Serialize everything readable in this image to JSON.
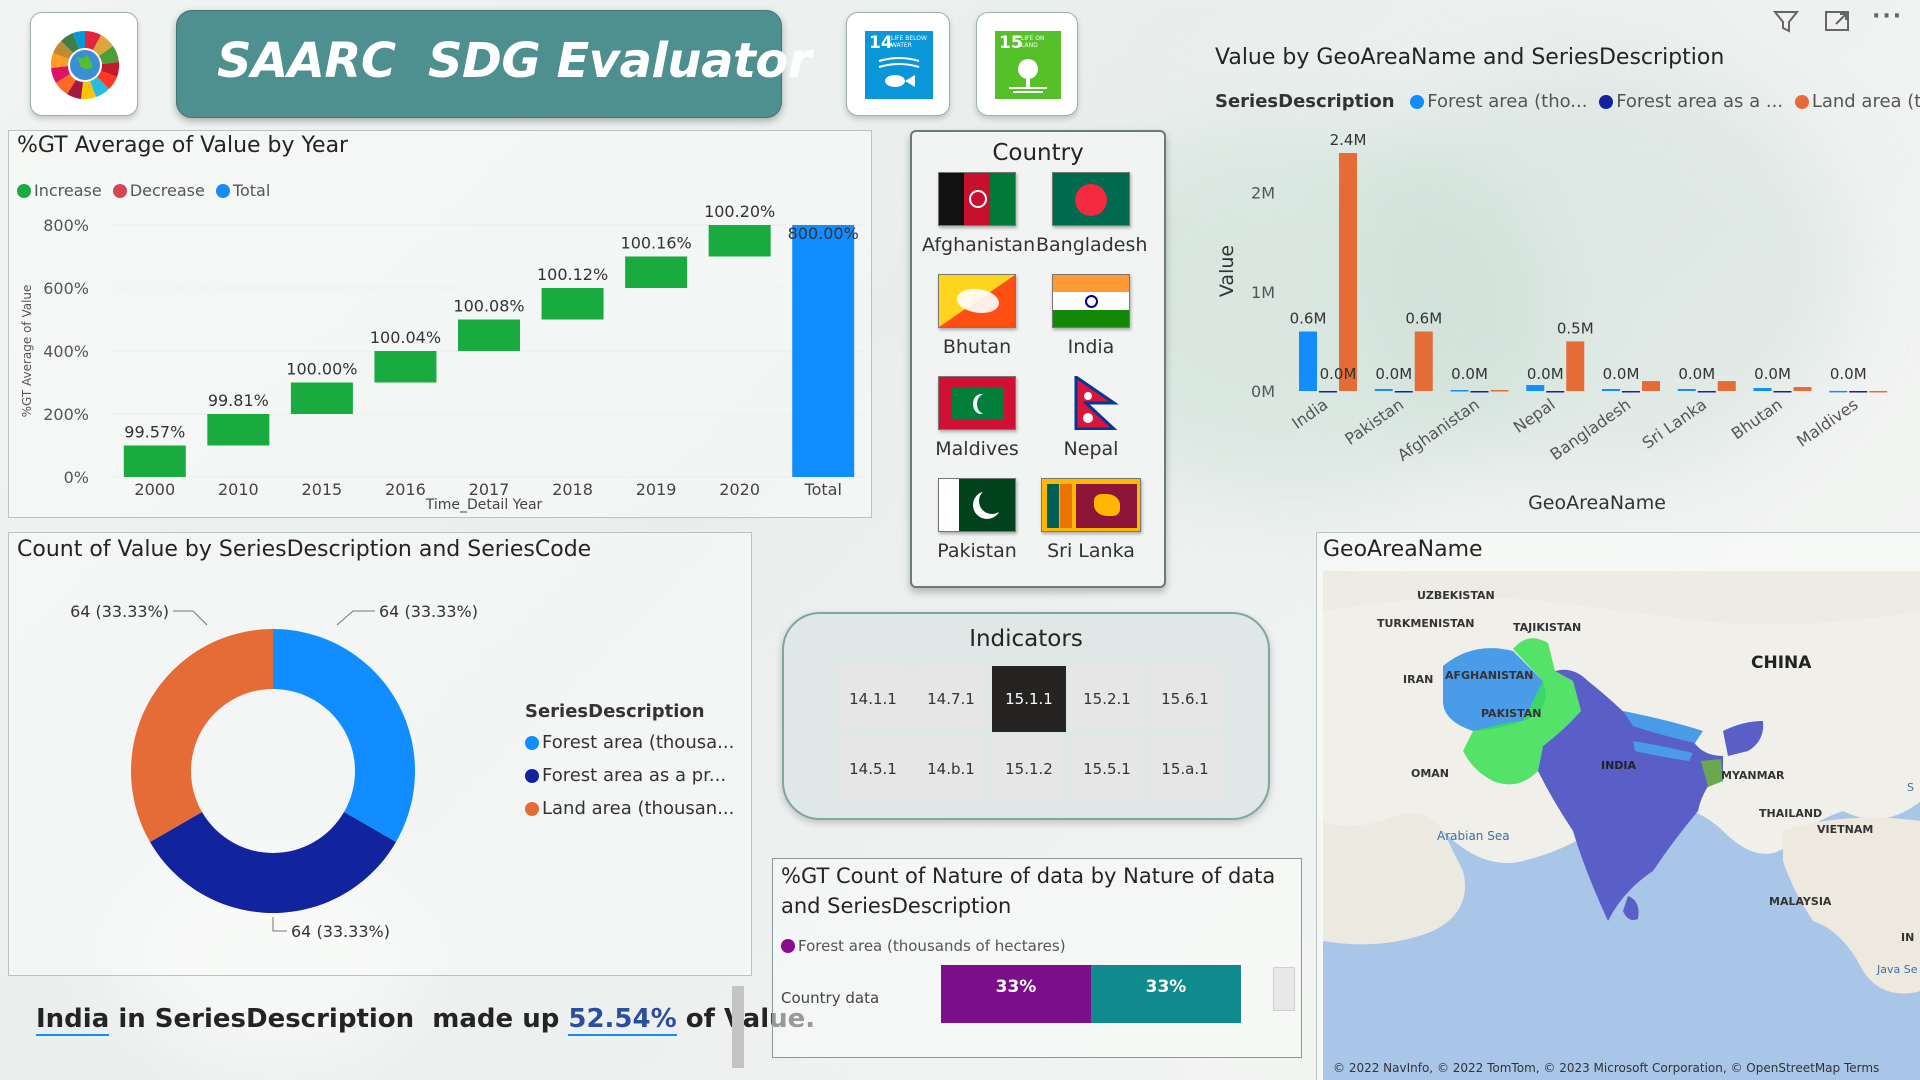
{
  "header": {
    "title": "SAARC  SDG Evaluator",
    "goal14": {
      "num": "14",
      "text": "LIFE BELOW WATER"
    },
    "goal15": {
      "num": "15",
      "text": "LIFE ON LAND"
    }
  },
  "visual_toolbar": {
    "filter_icon": "filter-icon",
    "focus_icon": "focus-mode-icon",
    "more_icon": "more-options-icon"
  },
  "waterfall": {
    "title": "%GT Average of Value by Year",
    "legend": [
      {
        "label": "Increase",
        "color": "#1aab40"
      },
      {
        "label": "Decrease",
        "color": "#d64554"
      },
      {
        "label": "Total",
        "color": "#118dff"
      }
    ]
  },
  "country_slicer": {
    "title": "Country",
    "countries": [
      "Afghanistan",
      "Bangladesh",
      "Bhutan",
      "India",
      "Maldives",
      "Nepal",
      "Pakistan",
      "Sri Lanka"
    ]
  },
  "indicators": {
    "title": "Indicators",
    "buttons": [
      "14.1.1",
      "14.7.1",
      "15.1.1",
      "15.2.1",
      "15.6.1",
      "14.5.1",
      "14.b.1",
      "15.1.2",
      "15.5.1",
      "15.a.1"
    ],
    "selected": "15.1.1"
  },
  "geo_chart": {
    "title": "Value by GeoAreaName and SeriesDescription",
    "legend_title": "SeriesDescription",
    "legend": [
      {
        "label": "Forest area (tho...",
        "color": "#118dff"
      },
      {
        "label": "Forest area as a ...",
        "color": "#12239e"
      },
      {
        "label": "Land area (t...",
        "color": "#e66c37"
      }
    ]
  },
  "donut": {
    "title": "Count of Value by SeriesDescription and SeriesCode",
    "legend_title": "SeriesDescription",
    "legend": [
      {
        "label": "Forest area (thousa...",
        "color": "#118dff"
      },
      {
        "label": "Forest area as a pr...",
        "color": "#12239e"
      },
      {
        "label": "Land area (thousan...",
        "color": "#e66c37"
      }
    ],
    "labels": [
      "64 (33.33%)",
      "64 (33.33%)",
      "64 (33.33%)"
    ]
  },
  "map": {
    "title": "GeoAreaName",
    "labels": [
      "UZBEKISTAN",
      "TURKMENISTAN",
      "TAJIKISTAN",
      "CHINA",
      "IRAN",
      "AFGHANISTAN",
      "PAKISTAN",
      "INDIA",
      "OMAN",
      "MYANMAR",
      "THAILAND",
      "VIETNAM",
      "MALAYSIA",
      "Arabian Sea",
      "Java Se",
      "IN",
      "S"
    ],
    "attribution": "© 2022 NavInfo, © 2022 TomTom, © 2023 Microsoft Corporation, © OpenStreetMap  Terms"
  },
  "smart_narrative": {
    "part1": "India",
    "part2": " in SeriesDescription  made up ",
    "part3": "52.54%",
    "part4": " of Value."
  },
  "bar100": {
    "title": "%GT Count of Nature of data by Nature of data and SeriesDescription",
    "legend": [
      {
        "label": "Forest area (thousands of hectares)",
        "color": "#8b0d8f"
      }
    ],
    "row_label": "Country data",
    "segments": [
      {
        "label": "33%",
        "value": 33,
        "color": "#7b0f8a"
      },
      {
        "label": "33%",
        "value": 33,
        "color": "#0f8b8d"
      }
    ]
  },
  "chart_data": [
    {
      "type": "bar",
      "subtype": "waterfall",
      "title": "%GT Average of Value by Year",
      "xlabel": "Time_Detail Year",
      "ylabel": "%GT Average of Value",
      "categories": [
        "2000",
        "2010",
        "2015",
        "2016",
        "2017",
        "2018",
        "2019",
        "2020",
        "Total"
      ],
      "values": [
        99.57,
        99.81,
        100.0,
        100.04,
        100.08,
        100.12,
        100.16,
        100.2,
        800.0
      ],
      "data_labels": [
        "99.57%",
        "99.81%",
        "100.00%",
        "100.04%",
        "100.08%",
        "100.12%",
        "100.16%",
        "100.20%",
        "800.00%"
      ],
      "yticks": [
        "0%",
        "200%",
        "400%",
        "600%",
        "800%"
      ],
      "ylim": [
        0,
        800
      ],
      "grid": true,
      "legend_position": "top-left"
    },
    {
      "type": "bar",
      "title": "Value by GeoAreaName and SeriesDescription",
      "xlabel": "GeoAreaName",
      "ylabel": "Value",
      "categories": [
        "India",
        "Pakistan",
        "Afghanistan",
        "Nepal",
        "Bangladesh",
        "Sri Lanka",
        "Bhutan",
        "Maldives"
      ],
      "series": [
        {
          "name": "Forest area (tho...",
          "values": [
            0.6,
            0.02,
            0.01,
            0.06,
            0.02,
            0.02,
            0.03,
            0.001
          ]
        },
        {
          "name": "Forest area as a ...",
          "values": [
            3e-05,
            5e-06,
            2e-06,
            4e-05,
            1e-05,
            3e-05,
            7e-05,
            3e-05
          ]
        },
        {
          "name": "Land area (t...",
          "values": [
            2.4,
            0.6,
            0.01,
            0.5,
            0.1,
            0.1,
            0.04,
            0.0003
          ]
        }
      ],
      "data_labels": [
        "0.6M",
        "2.4M",
        "0.0M",
        "0.6M",
        "0.0M",
        "0.5M",
        "0.0M",
        "0.0M",
        "0.0M",
        "0.0M",
        "0.0M",
        "0.0M"
      ],
      "yticks": [
        "0M",
        "1M",
        "2M"
      ],
      "ylim": [
        0,
        2.4
      ],
      "unit": "M",
      "legend_position": "top"
    },
    {
      "type": "pie",
      "subtype": "donut",
      "title": "Count of Value by SeriesDescription and SeriesCode",
      "categories": [
        "Forest area (thousa...",
        "Forest area as a pr...",
        "Land area (thousan..."
      ],
      "values": [
        64,
        64,
        64
      ],
      "percentages": [
        33.33,
        33.33,
        33.33
      ],
      "legend_position": "right"
    },
    {
      "type": "bar",
      "subtype": "100% stacked bar",
      "title": "%GT Count of Nature of data by Nature of data and SeriesDescription",
      "categories": [
        "Country data"
      ],
      "series": [
        {
          "name": "Forest area (thousands of hectares)",
          "values": [
            33
          ]
        },
        {
          "values": [
            33
          ]
        }
      ],
      "legend_position": "top-left"
    }
  ]
}
